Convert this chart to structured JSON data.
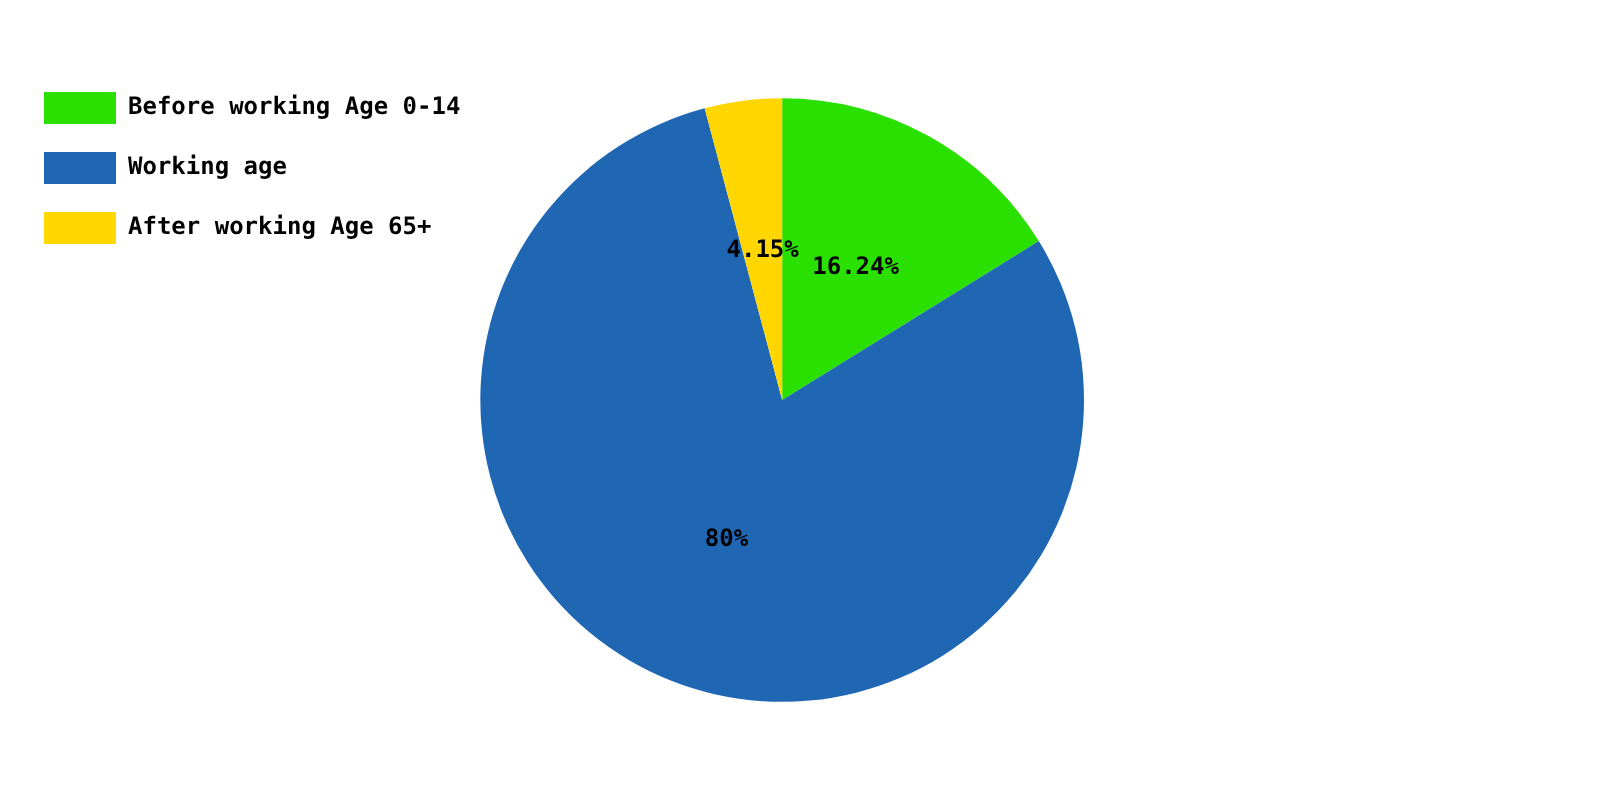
{
  "chart_data": {
    "type": "pie",
    "categories": [
      "Before working Age 0-14",
      "Working age",
      "After working Age 65+"
    ],
    "values": [
      16.24,
      80,
      4.15
    ],
    "colors": [
      "#2ae000",
      "#1f66b3",
      "#ffd600"
    ],
    "value_labels": [
      "16.24%",
      "80%",
      "4.15%"
    ],
    "legend": "top left"
  }
}
